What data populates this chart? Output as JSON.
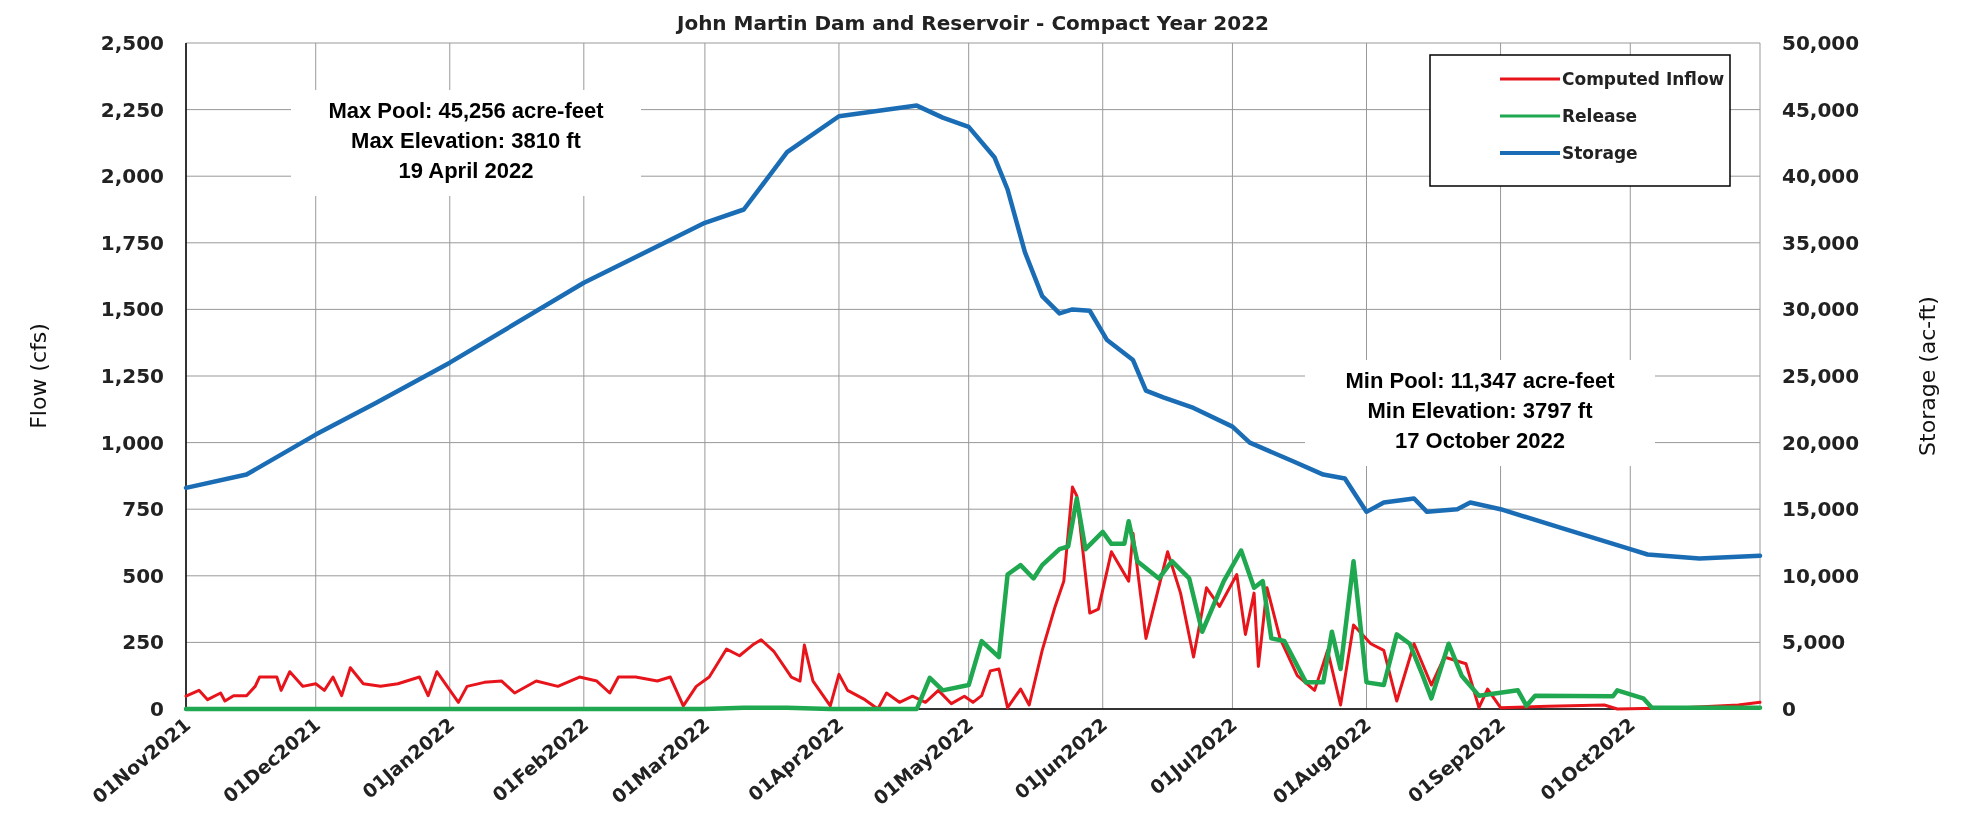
{
  "chart_data": {
    "type": "line",
    "title": "John Martin Dam and Reservoir - Compact Year 2022",
    "ylabel": "Flow (cfs)",
    "y2label": "Storage (ac-ft)",
    "xlim": [
      "2021-11-01",
      "2022-10-31"
    ],
    "xticks": [
      {
        "value": "2021-11-01",
        "label": "01Nov2021"
      },
      {
        "value": "2021-12-01",
        "label": "01Dec2021"
      },
      {
        "value": "2022-01-01",
        "label": "01Jan2022"
      },
      {
        "value": "2022-02-01",
        "label": "01Feb2022"
      },
      {
        "value": "2022-03-01",
        "label": "01Mar2022"
      },
      {
        "value": "2022-04-01",
        "label": "01Apr2022"
      },
      {
        "value": "2022-05-01",
        "label": "01May2022"
      },
      {
        "value": "2022-06-01",
        "label": "01Jun2022"
      },
      {
        "value": "2022-07-01",
        "label": "01Jul2022"
      },
      {
        "value": "2022-08-01",
        "label": "01Aug2022"
      },
      {
        "value": "2022-09-01",
        "label": "01Sep2022"
      },
      {
        "value": "2022-10-01",
        "label": "01Oct2022"
      },
      {
        "value": "2022-10-31",
        "label": null
      }
    ],
    "ylim": [
      0,
      2500
    ],
    "yticks": [
      {
        "value": 0,
        "label": "0"
      },
      {
        "value": 250,
        "label": "250"
      },
      {
        "value": 500,
        "label": "500"
      },
      {
        "value": 750,
        "label": "750"
      },
      {
        "value": 1000,
        "label": "1,000"
      },
      {
        "value": 1250,
        "label": "1,250"
      },
      {
        "value": 1500,
        "label": "1,500"
      },
      {
        "value": 1750,
        "label": "1,750"
      },
      {
        "value": 2000,
        "label": "2,000"
      },
      {
        "value": 2250,
        "label": "2,250"
      },
      {
        "value": 2500,
        "label": "2,500"
      }
    ],
    "y2lim": [
      0,
      50000
    ],
    "y2ticks": [
      {
        "value": 0,
        "label": "0"
      },
      {
        "value": 5000,
        "label": "5,000"
      },
      {
        "value": 10000,
        "label": "10,000"
      },
      {
        "value": 15000,
        "label": "15,000"
      },
      {
        "value": 20000,
        "label": "20,000"
      },
      {
        "value": 25000,
        "label": "25,000"
      },
      {
        "value": 30000,
        "label": "30,000"
      },
      {
        "value": 35000,
        "label": "35,000"
      },
      {
        "value": 40000,
        "label": "40,000"
      },
      {
        "value": 45000,
        "label": "45,000"
      },
      {
        "value": 50000,
        "label": "50,000"
      }
    ],
    "grid": true,
    "legend": "top right",
    "line_style": "solid",
    "annotations": [
      "Max Pool: 45,256 acre-feet\nMax Elevation: 3810 ft\n19 April 2022",
      "Min Pool: 11,347 acre-feet\nMin Elevation: 3797 ft\n17 October 2022"
    ],
    "series": [
      {
        "name": "Computed Inflow",
        "color": "#e8141b",
        "x": [
          "2021-11-01",
          "2021-11-04",
          "2021-11-06",
          "2021-11-09",
          "2021-11-10",
          "2021-11-12",
          "2021-11-15",
          "2021-11-17",
          "2021-11-18",
          "2021-11-22",
          "2021-11-23",
          "2021-11-25",
          "2021-11-28",
          "2021-12-01",
          "2021-12-03",
          "2021-12-05",
          "2021-12-07",
          "2021-12-09",
          "2021-12-12",
          "2021-12-16",
          "2021-12-20",
          "2021-12-25",
          "2021-12-27",
          "2021-12-29",
          "2022-01-03",
          "2022-01-05",
          "2022-01-09",
          "2022-01-13",
          "2022-01-16",
          "2022-01-21",
          "2022-01-26",
          "2022-01-31",
          "2022-02-04",
          "2022-02-07",
          "2022-02-09",
          "2022-02-13",
          "2022-02-18",
          "2022-02-21",
          "2022-02-24",
          "2022-02-27",
          "2022-03-02",
          "2022-03-06",
          "2022-03-09",
          "2022-03-12",
          "2022-03-14",
          "2022-03-17",
          "2022-03-21",
          "2022-03-23",
          "2022-03-24",
          "2022-03-26",
          "2022-03-30",
          "2022-04-01",
          "2022-04-03",
          "2022-04-07",
          "2022-04-10",
          "2022-04-12",
          "2022-04-15",
          "2022-04-18",
          "2022-04-21",
          "2022-04-24",
          "2022-04-27",
          "2022-04-30",
          "2022-05-02",
          "2022-05-04",
          "2022-05-06",
          "2022-05-08",
          "2022-05-10",
          "2022-05-13",
          "2022-05-15",
          "2022-05-18",
          "2022-05-21",
          "2022-05-23",
          "2022-05-25",
          "2022-05-26",
          "2022-05-29",
          "2022-05-31",
          "2022-06-03",
          "2022-06-07",
          "2022-06-08",
          "2022-06-11",
          "2022-06-16",
          "2022-06-19",
          "2022-06-22",
          "2022-06-25",
          "2022-06-28",
          "2022-07-02",
          "2022-07-04",
          "2022-07-06",
          "2022-07-07",
          "2022-07-09",
          "2022-07-12",
          "2022-07-16",
          "2022-07-20",
          "2022-07-23",
          "2022-07-26",
          "2022-07-29",
          "2022-08-02",
          "2022-08-05",
          "2022-08-08",
          "2022-08-12",
          "2022-08-16",
          "2022-08-19",
          "2022-08-24",
          "2022-08-27",
          "2022-08-29",
          "2022-09-01",
          "2022-09-12",
          "2022-09-25",
          "2022-09-28",
          "2022-10-13",
          "2022-10-26",
          "2022-10-31"
        ],
        "values": [
          48,
          70,
          35,
          60,
          30,
          50,
          50,
          85,
          120,
          120,
          70,
          140,
          85,
          95,
          70,
          120,
          50,
          155,
          95,
          85,
          95,
          120,
          50,
          140,
          25,
          85,
          100,
          105,
          60,
          105,
          85,
          120,
          105,
          60,
          120,
          120,
          105,
          120,
          12,
          85,
          120,
          225,
          200,
          240,
          260,
          215,
          120,
          105,
          240,
          105,
          12,
          130,
          70,
          35,
          0,
          60,
          25,
          48,
          25,
          70,
          20,
          48,
          25,
          50,
          143,
          150,
          5,
          75,
          15,
          220,
          385,
          480,
          833,
          800,
          360,
          375,
          590,
          480,
          660,
          265,
          590,
          435,
          195,
          455,
          385,
          505,
          280,
          435,
          160,
          455,
          265,
          125,
          70,
          220,
          15,
          315,
          245,
          220,
          30,
          245,
          90,
          195,
          170,
          5,
          75,
          5,
          10,
          15,
          0,
          5,
          15,
          25
        ]
      },
      {
        "name": "Release",
        "color": "#1fa84f",
        "x": [
          "2021-11-01",
          "2022-03-01",
          "2022-03-10",
          "2022-03-20",
          "2022-03-30",
          "2022-04-19",
          "2022-04-22",
          "2022-04-25",
          "2022-05-01",
          "2022-05-04",
          "2022-05-08",
          "2022-05-10",
          "2022-05-13",
          "2022-05-16",
          "2022-05-18",
          "2022-05-22",
          "2022-05-24",
          "2022-05-26",
          "2022-05-28",
          "2022-06-01",
          "2022-06-03",
          "2022-06-06",
          "2022-06-07",
          "2022-06-09",
          "2022-06-14",
          "2022-06-17",
          "2022-06-21",
          "2022-06-24",
          "2022-06-29",
          "2022-07-03",
          "2022-07-06",
          "2022-07-08",
          "2022-07-10",
          "2022-07-13",
          "2022-07-18",
          "2022-07-22",
          "2022-07-24",
          "2022-07-26",
          "2022-07-29",
          "2022-08-01",
          "2022-08-05",
          "2022-08-08",
          "2022-08-11",
          "2022-08-14",
          "2022-08-16",
          "2022-08-20",
          "2022-08-23",
          "2022-08-27",
          "2022-09-05",
          "2022-09-07",
          "2022-09-09",
          "2022-09-27",
          "2022-09-28",
          "2022-10-04",
          "2022-10-06",
          "2022-10-31"
        ],
        "values": [
          0,
          0,
          5,
          5,
          0,
          0,
          117,
          70,
          90,
          255,
          195,
          505,
          540,
          490,
          540,
          600,
          610,
          790,
          600,
          665,
          620,
          620,
          705,
          555,
          490,
          555,
          490,
          290,
          480,
          595,
          455,
          480,
          265,
          255,
          100,
          100,
          290,
          150,
          555,
          100,
          90,
          280,
          245,
          125,
          40,
          245,
          125,
          50,
          70,
          12,
          50,
          48,
          70,
          40,
          5,
          5
        ]
      },
      {
        "name": "Storage",
        "color": "#1a6db5",
        "axis": "y2",
        "x": [
          "2021-11-01",
          "2021-11-15",
          "2021-12-01",
          "2021-12-15",
          "2022-01-01",
          "2022-02-01",
          "2022-03-01",
          "2022-03-10",
          "2022-03-20",
          "2022-04-01",
          "2022-04-19",
          "2022-04-25",
          "2022-05-01",
          "2022-05-07",
          "2022-05-10",
          "2022-05-14",
          "2022-05-18",
          "2022-05-22",
          "2022-05-25",
          "2022-05-29",
          "2022-06-02",
          "2022-06-08",
          "2022-06-11",
          "2022-06-15",
          "2022-06-22",
          "2022-07-01",
          "2022-07-05",
          "2022-07-15",
          "2022-07-22",
          "2022-07-27",
          "2022-08-01",
          "2022-08-05",
          "2022-08-12",
          "2022-08-15",
          "2022-08-22",
          "2022-08-25",
          "2022-09-01",
          "2022-09-15",
          "2022-10-01",
          "2022-10-05",
          "2022-10-17",
          "2022-10-31"
        ],
        "values": [
          16600,
          17600,
          20600,
          23000,
          26000,
          32000,
          36500,
          37500,
          41800,
          44500,
          45300,
          44400,
          43700,
          41400,
          39000,
          34300,
          31000,
          29700,
          30000,
          29900,
          27700,
          26200,
          23900,
          23400,
          22600,
          21200,
          20000,
          18600,
          17600,
          17300,
          14800,
          15500,
          15800,
          14800,
          15000,
          15500,
          15000,
          13600,
          12000,
          11600,
          11300,
          11500
        ]
      }
    ]
  }
}
